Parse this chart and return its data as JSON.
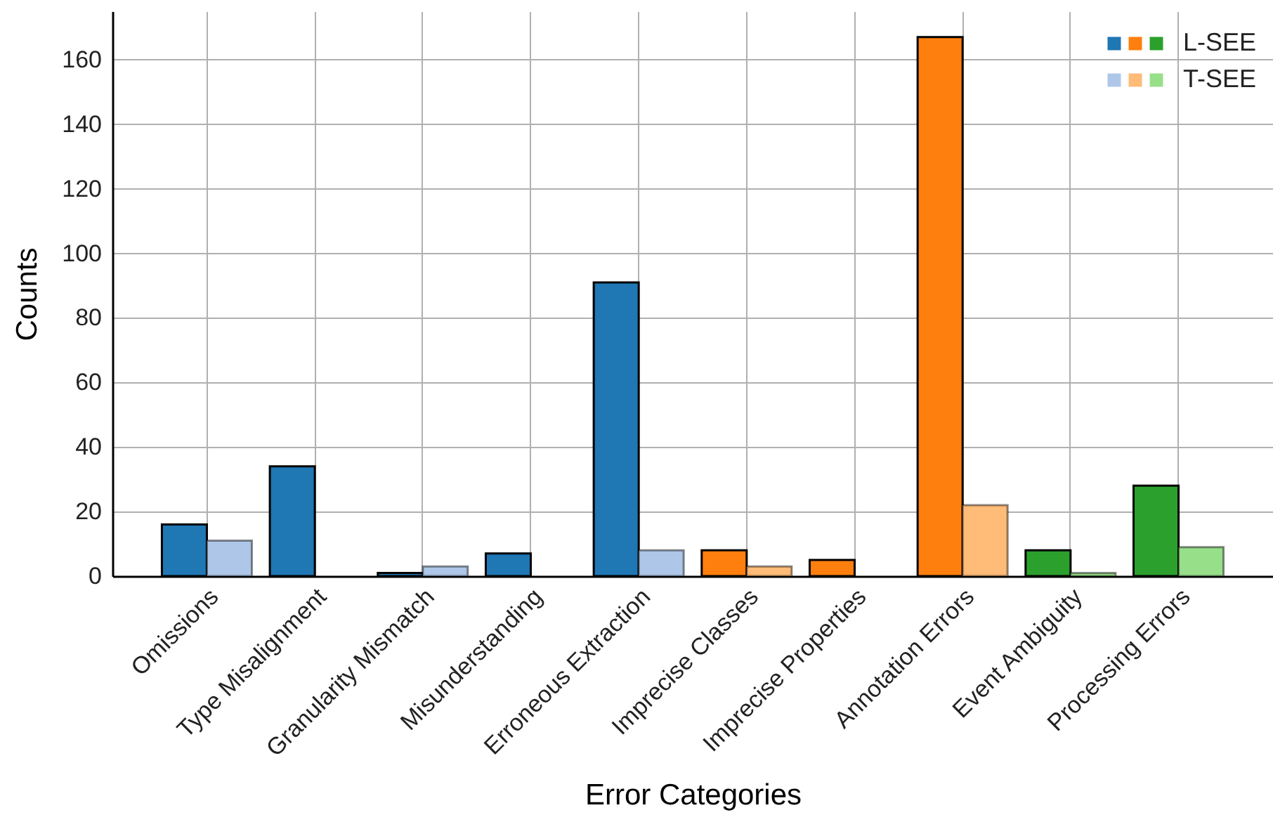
{
  "chart_data": {
    "type": "bar",
    "xlabel": "Error Categories",
    "ylabel": "Counts",
    "categories": [
      "Omissions",
      "Type Misalignment",
      "Granularity Mismatch",
      "Misunderstanding",
      "Erroneous Extraction",
      "Imprecise Classes",
      "Imprecise Properties",
      "Annotation Errors",
      "Event Ambiguity",
      "Processing Errors"
    ],
    "series": [
      {
        "name": "L-SEE",
        "colors": [
          "#1f77b4",
          "#1f77b4",
          "#1f77b4",
          "#1f77b4",
          "#1f77b4",
          "#ff7f0e",
          "#ff7f0e",
          "#ff7f0e",
          "#2ca02c",
          "#2ca02c"
        ],
        "values": [
          16,
          34,
          1,
          7,
          91,
          8,
          5,
          167,
          8,
          28
        ]
      },
      {
        "name": "T-SEE",
        "colors": [
          "#aec7e8",
          "#aec7e8",
          "#aec7e8",
          "#aec7e8",
          "#aec7e8",
          "#ffbb78",
          "#ffbb78",
          "#ffbb78",
          "#98df8a",
          "#98df8a"
        ],
        "values": [
          11,
          0,
          3,
          0,
          8,
          3,
          0,
          22,
          1,
          9
        ]
      }
    ],
    "ylim": [
      0,
      175
    ],
    "yticks": [
      0,
      20,
      40,
      60,
      80,
      100,
      120,
      140,
      160
    ],
    "grid": true,
    "legend": "top right"
  }
}
